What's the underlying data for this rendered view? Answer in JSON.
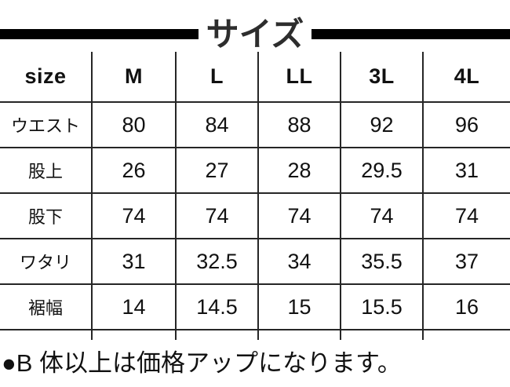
{
  "title": {
    "text": "サイズ"
  },
  "table": {
    "header": {
      "label": "size",
      "sizes": [
        "M",
        "L",
        "LL",
        "3L",
        "4L"
      ]
    },
    "rows": [
      {
        "label": "ウエスト",
        "values": [
          "80",
          "84",
          "88",
          "92",
          "96"
        ]
      },
      {
        "label": "股上",
        "values": [
          "26",
          "27",
          "28",
          "29.5",
          "31"
        ]
      },
      {
        "label": "股下",
        "values": [
          "74",
          "74",
          "74",
          "74",
          "74"
        ]
      },
      {
        "label": "ワタリ",
        "values": [
          "31",
          "32.5",
          "34",
          "35.5",
          "37"
        ]
      },
      {
        "label": "裾幅",
        "values": [
          "14",
          "14.5",
          "15",
          "15.5",
          "16"
        ]
      }
    ]
  },
  "note": {
    "text": "●B 体以上は価格アップになります。"
  },
  "colors": {
    "bar": "#000000",
    "line": "#262626",
    "text": "#111111",
    "title_text": "#2d2d2d"
  }
}
